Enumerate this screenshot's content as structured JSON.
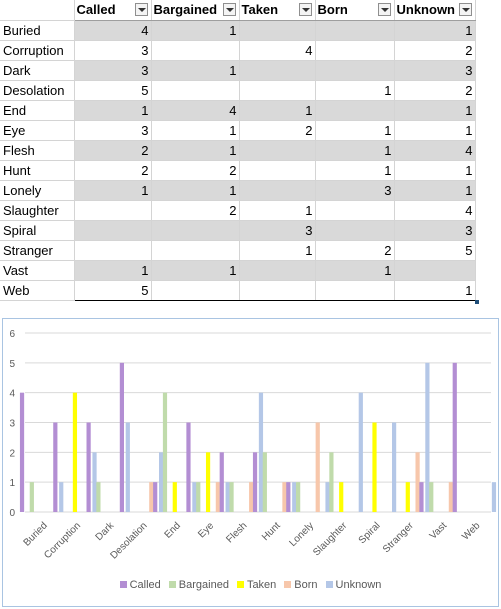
{
  "table": {
    "columns": [
      "Called",
      "Bargained",
      "Taken",
      "Born",
      "Unknown"
    ],
    "rows": [
      {
        "label": "Buried",
        "values": [
          "4",
          "1",
          "",
          "",
          "1"
        ]
      },
      {
        "label": "Corruption",
        "values": [
          "3",
          "",
          "4",
          "",
          "2"
        ]
      },
      {
        "label": "Dark",
        "values": [
          "3",
          "1",
          "",
          "",
          "3"
        ]
      },
      {
        "label": "Desolation",
        "values": [
          "5",
          "",
          "",
          "1",
          "2"
        ]
      },
      {
        "label": "End",
        "values": [
          "1",
          "4",
          "1",
          "",
          "1"
        ]
      },
      {
        "label": "Eye",
        "values": [
          "3",
          "1",
          "2",
          "1",
          "1"
        ]
      },
      {
        "label": "Flesh",
        "values": [
          "2",
          "1",
          "",
          "1",
          "4"
        ]
      },
      {
        "label": "Hunt",
        "values": [
          "2",
          "2",
          "",
          "1",
          "1"
        ]
      },
      {
        "label": "Lonely",
        "values": [
          "1",
          "1",
          "",
          "3",
          "1"
        ]
      },
      {
        "label": "Slaughter",
        "values": [
          "",
          "2",
          "1",
          "",
          "4"
        ]
      },
      {
        "label": "Spiral",
        "values": [
          "",
          "",
          "3",
          "",
          "3"
        ]
      },
      {
        "label": "Stranger",
        "values": [
          "",
          "",
          "1",
          "2",
          "5"
        ]
      },
      {
        "label": "Vast",
        "values": [
          "1",
          "1",
          "",
          "1",
          ""
        ]
      },
      {
        "label": "Web",
        "values": [
          "5",
          "",
          "",
          "",
          "1"
        ]
      }
    ]
  },
  "chart_data": {
    "type": "bar",
    "categories": [
      "Buried",
      "Corruption",
      "Dark",
      "Desolation",
      "End",
      "Eye",
      "Flesh",
      "Hunt",
      "Lonely",
      "Slaughter",
      "Spiral",
      "Stranger",
      "Vast",
      "Web"
    ],
    "series": [
      {
        "name": "Called",
        "color": "#b38ed3",
        "values": [
          4,
          3,
          3,
          5,
          1,
          3,
          2,
          2,
          1,
          0,
          0,
          0,
          1,
          5
        ]
      },
      {
        "name": "Bargained",
        "color": "#c0dbab",
        "values": [
          1,
          0,
          1,
          0,
          4,
          1,
          1,
          2,
          1,
          2,
          0,
          0,
          1,
          0
        ]
      },
      {
        "name": "Taken",
        "color": "#ffff00",
        "values": [
          0,
          4,
          0,
          0,
          1,
          2,
          0,
          0,
          0,
          1,
          3,
          1,
          0,
          0
        ]
      },
      {
        "name": "Born",
        "color": "#f7c7ab",
        "values": [
          0,
          0,
          0,
          1,
          0,
          1,
          1,
          1,
          3,
          0,
          0,
          2,
          1,
          0
        ]
      },
      {
        "name": "Unknown",
        "color": "#b4c7e7",
        "values": [
          1,
          2,
          3,
          2,
          1,
          1,
          4,
          1,
          1,
          4,
          3,
          5,
          0,
          1
        ]
      }
    ],
    "ylim": [
      0,
      6
    ],
    "yticks": [
      "0",
      "1",
      "2",
      "3",
      "4",
      "5",
      "6"
    ],
    "grid": true,
    "legend": "bottom",
    "title": "",
    "xlabel": "",
    "ylabel": ""
  },
  "colors": {
    "gridline": "#d9d9d9",
    "band": "#d9d9d9",
    "chart_border": "#a9c4e2"
  }
}
